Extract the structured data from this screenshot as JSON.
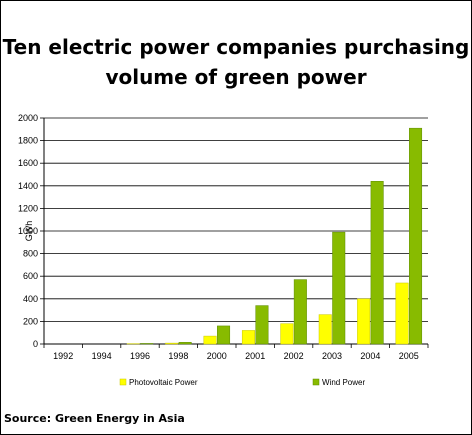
{
  "title_line1": "Ten electric power companies purchasing",
  "title_line2": "volume of green power",
  "source": "Source: Green Energy in Asia",
  "colors": {
    "photovoltaic": "#ffff00",
    "wind": "#88bb00",
    "wind_edge": "#5c8a00"
  },
  "chart_data": {
    "type": "bar",
    "title": "Ten electric power companies purchasing volume of green power",
    "ylabel": "GWh",
    "xlabel": "",
    "ylim": [
      0,
      2000
    ],
    "yticks": [
      0,
      200,
      400,
      600,
      800,
      1000,
      1200,
      1400,
      1600,
      1800,
      2000
    ],
    "grid": true,
    "legend_position": "bottom",
    "categories": [
      "1992",
      "1994",
      "1996",
      "1998",
      "2000",
      "2001",
      "2002",
      "2003",
      "2004",
      "2005"
    ],
    "series": [
      {
        "name": "Photovoltaic Power",
        "values": [
          0,
          0,
          3,
          8,
          70,
          120,
          180,
          260,
          400,
          540
        ]
      },
      {
        "name": "Wind Power",
        "values": [
          0,
          0,
          5,
          15,
          160,
          340,
          570,
          990,
          1440,
          1910
        ]
      }
    ]
  }
}
